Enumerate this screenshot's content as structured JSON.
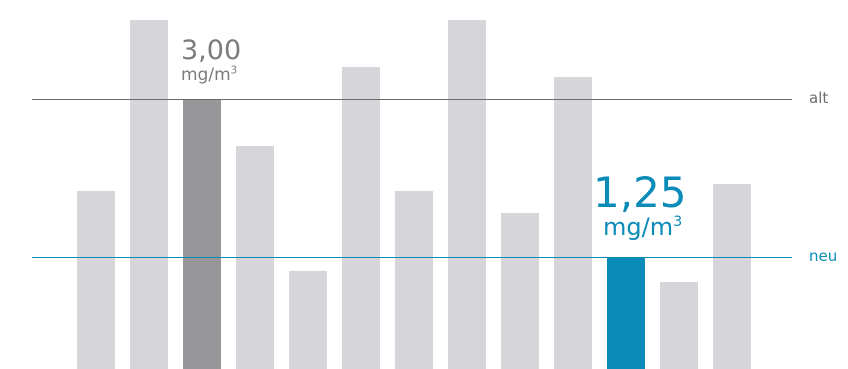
{
  "chart_data": {
    "type": "bar",
    "values": [
      1.98,
      3.88,
      3.0,
      2.48,
      1.09,
      3.36,
      1.98,
      3.88,
      1.73,
      3.25,
      1.25,
      0.97,
      2.06
    ],
    "ylim": [
      0,
      4.1
    ],
    "reference_lines": [
      {
        "label": "alt",
        "value": 3.0,
        "color": "#6b6b6b"
      },
      {
        "label": "neu",
        "value": 1.25,
        "color": "#0b8cb8"
      }
    ],
    "annotations": [
      {
        "bar_index": 2,
        "value_text": "3,00",
        "unit_text": "mg/m",
        "unit_sup": "3",
        "color": "#7c7c7e",
        "style": "old"
      },
      {
        "bar_index": 10,
        "value_text": "1,25",
        "unit_text": "mg/m",
        "unit_sup": "3",
        "color": "#0b8cb8",
        "style": "new"
      }
    ],
    "colors": {
      "bar_default": "#d6d6da",
      "bar_highlight_old": "#97979a",
      "bar_highlight_new": "#0b8cb8"
    },
    "highlights": {
      "2": "bar_highlight_old",
      "10": "bar_highlight_new"
    }
  }
}
